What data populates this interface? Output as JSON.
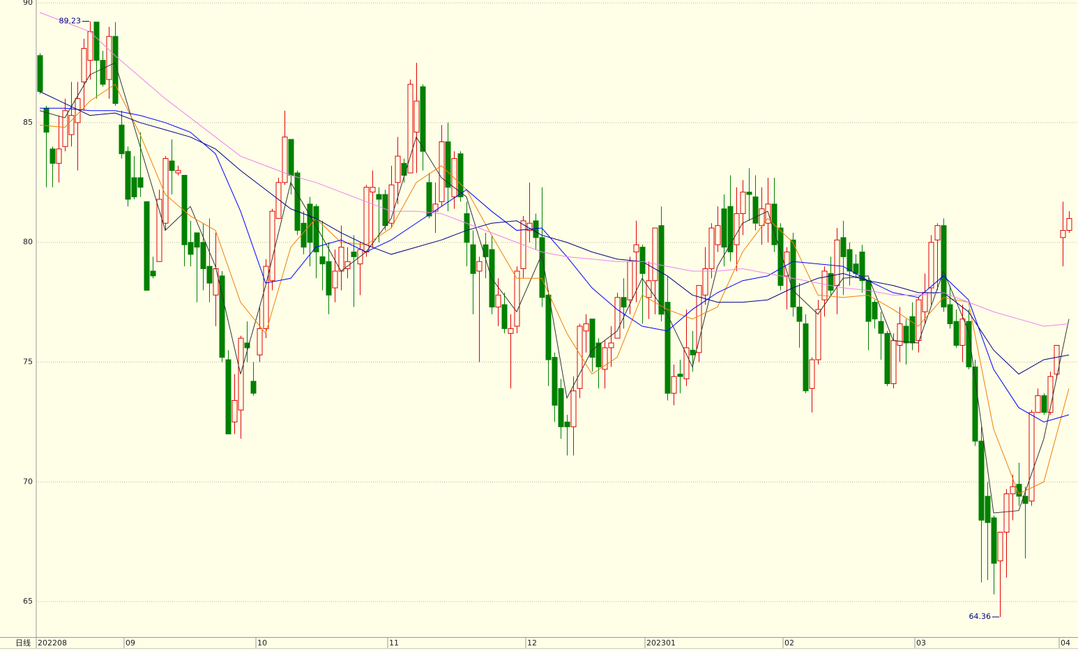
{
  "chart_data": {
    "type": "candlestick",
    "period_label": "日线",
    "categories": [
      "202208",
      null,
      null,
      null,
      null,
      null,
      null,
      null,
      null,
      null,
      null,
      null,
      null,
      null,
      "09",
      null,
      null,
      null,
      null,
      null,
      null,
      null,
      null,
      null,
      null,
      null,
      null,
      null,
      null,
      null,
      null,
      null,
      null,
      null,
      null,
      "10",
      null,
      null,
      null,
      null,
      null,
      null,
      null,
      null,
      null,
      null,
      null,
      null,
      null,
      null,
      null,
      null,
      null,
      null,
      null,
      null,
      "11",
      null,
      null,
      null,
      null,
      null,
      null,
      null,
      null,
      null,
      null,
      null,
      null,
      null,
      null,
      null,
      null,
      null,
      null,
      null,
      null,
      null,
      "12",
      null,
      null,
      null,
      null,
      null,
      null,
      null,
      null,
      null,
      null,
      null,
      null,
      null,
      null,
      null,
      null,
      null,
      null,
      "202301",
      null,
      null,
      null,
      null,
      null,
      null,
      null,
      null,
      null,
      null,
      null,
      null,
      null,
      null,
      null,
      null,
      null,
      null,
      null,
      null,
      null,
      "02",
      null,
      null,
      null,
      null,
      null,
      null,
      null,
      null,
      null,
      null,
      null,
      null,
      null,
      null,
      null,
      null,
      null,
      null,
      null,
      null,
      "03",
      null,
      null,
      null,
      null,
      null,
      null,
      null,
      null,
      null,
      null,
      null,
      null,
      null,
      null,
      null,
      null,
      null,
      null,
      null,
      null,
      null,
      null,
      "04",
      null
    ],
    "open": [
      87.8,
      85.6,
      83.9,
      83.3,
      84,
      84.5,
      85,
      86.7,
      87.6,
      89.2,
      87.6,
      86.8,
      88.6,
      84.9,
      83.8,
      82.7,
      82.7,
      81.7,
      78.8,
      79.2,
      80.8,
      83.4,
      82.9,
      82.8,
      80,
      80.4,
      80,
      79,
      77.8,
      78.6,
      75.1,
      72.5,
      73,
      75.8,
      74.2,
      75.3,
      76.4,
      78.4,
      81,
      82.5,
      84.3,
      82.9,
      80.8,
      81.6,
      81.5,
      79.4,
      79.2,
      78.1,
      78.8,
      78.9,
      79.6,
      79.1,
      79.6,
      82.1,
      82,
      82,
      80.8,
      82.5,
      83.3,
      82.9,
      84.6,
      86.5,
      82.5,
      81.3,
      81.7,
      84.2,
      81.9,
      83.7,
      81.2,
      79.9,
      78.8,
      79.9,
      79.7,
      77.3,
      77.4,
      76.2,
      76.5,
      78.9,
      80.5,
      80.9,
      80.2,
      77.8,
      75.2,
      73.9,
      72.5,
      72.3,
      73.9,
      76.3,
      76.8,
      75.8,
      74.7,
      75.6,
      76,
      77.7,
      77.6,
      79.6,
      79.8,
      77.7,
      78.4,
      80.7,
      77.5,
      73.7,
      74.5,
      74.3,
      75.5,
      75.4,
      77.8,
      78.9,
      79.9,
      81.4,
      81.5,
      79.9,
      81.2,
      82.1,
      81.9,
      80.7,
      80.8,
      81.6,
      80.6,
      78.6,
      80.1,
      77.3,
      76.6,
      73.9,
      75.1,
      77.6,
      78.7,
      78.2,
      80.2,
      79.7,
      79.1,
      79.6,
      78.4,
      77.5,
      76.7,
      76.2,
      74.1,
      75.7,
      76.5,
      76.9,
      75.9,
      77.1,
      78.1,
      80.1,
      80.7,
      77.4,
      76.7,
      75.7,
      76.7,
      74.8,
      71.7,
      69.4,
      68.5,
      66.7,
      67.9,
      69.5,
      69.9,
      69.4,
      69.2,
      72.9,
      73.6,
      72.9,
      74.5,
      80.2,
      80.5
    ],
    "high": [
      87.9,
      85.7,
      84,
      85.3,
      86,
      86.7,
      86.7,
      88.5,
      89.23,
      89.2,
      88,
      89,
      89.2,
      85.5,
      84,
      83.6,
      84.6,
      81.7,
      79.4,
      82.2,
      83.6,
      84.3,
      83.2,
      82.8,
      80.9,
      80.4,
      80.8,
      81,
      80.4,
      78.8,
      75.5,
      74.5,
      76.1,
      76.7,
      75,
      77.3,
      79.3,
      81.4,
      82.7,
      85.5,
      84.3,
      83,
      81.3,
      81.9,
      81.6,
      80.9,
      80,
      79.7,
      80.7,
      79.8,
      80.3,
      80,
      82.4,
      83,
      82.3,
      82.2,
      83.2,
      84.4,
      83.5,
      86.8,
      87.5,
      86.6,
      82.9,
      82.5,
      84.9,
      85,
      83.8,
      83.8,
      81.7,
      80.5,
      79.4,
      80.4,
      80.3,
      78.5,
      77.9,
      77,
      79,
      81.1,
      82.5,
      81.2,
      82.3,
      78,
      75.4,
      74.3,
      72.8,
      74.4,
      76.6,
      77,
      76.8,
      76,
      75.9,
      76.5,
      77.9,
      78.5,
      79.4,
      80.9,
      79.9,
      79.2,
      80.6,
      81.5,
      78.6,
      74.9,
      75.1,
      77.2,
      76.3,
      78.2,
      79.8,
      80.8,
      81.5,
      82,
      82.8,
      82.3,
      82.6,
      83.1,
      82.8,
      82.3,
      82.7,
      82.7,
      80.8,
      79.8,
      80.4,
      78.3,
      77,
      75.2,
      77.6,
      79,
      79.4,
      80.6,
      80.9,
      80,
      79.5,
      79.9,
      78.5,
      77.6,
      77.1,
      76.3,
      76.2,
      77.3,
      76.8,
      77.5,
      77.7,
      78.7,
      80.3,
      80.8,
      81,
      78.2,
      77.2,
      77.4,
      77.2,
      75.1,
      72.3,
      70,
      68.6,
      67.9,
      69.7,
      70.3,
      70.8,
      69.8,
      73,
      73.9,
      73.7,
      74.6,
      75.7,
      81.7,
      81.3
    ],
    "low": [
      86.2,
      82.3,
      82.3,
      82.5,
      83.8,
      84,
      83,
      85.5,
      86.8,
      86,
      86.5,
      86,
      85.7,
      83.5,
      81.5,
      81.8,
      81.9,
      78,
      78.5,
      79.2,
      80.5,
      82,
      82.8,
      79,
      79,
      77.5,
      78,
      77.5,
      76.5,
      75,
      72,
      72,
      71.8,
      75,
      73.6,
      75,
      76,
      78,
      81,
      82.4,
      82,
      80.3,
      79.5,
      79,
      78.5,
      78,
      77,
      77.5,
      78,
      78.5,
      77.3,
      77.8,
      79.4,
      79.8,
      80,
      80.5,
      80.6,
      81.6,
      82.5,
      82.9,
      82.9,
      83,
      81,
      80.4,
      81.5,
      81.3,
      81.4,
      81.7,
      79,
      77,
      75,
      78.5,
      77,
      76.5,
      76.2,
      73.9,
      76.2,
      78.5,
      80,
      79.7,
      77.3,
      74,
      72.5,
      71.8,
      71.1,
      71.1,
      73.5,
      75.4,
      74.6,
      73.9,
      73.9,
      74.8,
      76,
      76.4,
      77,
      77.5,
      76.6,
      76.8,
      77,
      76.7,
      73.4,
      73.2,
      73.7,
      74,
      74.6,
      75,
      77.4,
      78.5,
      79.6,
      79,
      79.2,
      78.8,
      80.3,
      80.9,
      80.5,
      79.9,
      80,
      79.6,
      78,
      77.2,
      76.9,
      75.6,
      73.7,
      72.9,
      74.9,
      76.9,
      77.8,
      77,
      77.8,
      78.2,
      78.5,
      77.9,
      75.5,
      76.4,
      75.1,
      74,
      73.9,
      75,
      74.9,
      75.5,
      75.4,
      76.6,
      77.4,
      78,
      77.1,
      76.4,
      75.6,
      75,
      74.7,
      71.5,
      65.8,
      65.9,
      65.3,
      64.36,
      66,
      68.4,
      69,
      66.8,
      69,
      73,
      72.8,
      72.8,
      74.3,
      79,
      80.4
    ],
    "close": [
      86.3,
      84.6,
      83.3,
      83.9,
      85.5,
      85.3,
      86,
      88.1,
      88.8,
      87.6,
      86.6,
      88.6,
      85.8,
      83.7,
      81.8,
      81.9,
      82.3,
      78,
      78.6,
      81.8,
      83.5,
      83,
      83,
      79.9,
      79.5,
      79.8,
      78.9,
      78.3,
      78.9,
      75.2,
      72,
      73.4,
      76,
      75.6,
      73.7,
      76.4,
      79,
      81.3,
      82.5,
      84.4,
      82.8,
      80.5,
      79.8,
      80,
      79.6,
      79.1,
      77.8,
      78.8,
      79.8,
      79.2,
      79.4,
      79.7,
      82.3,
      82.3,
      81.8,
      80.7,
      82.4,
      83.6,
      82.8,
      86.6,
      85.9,
      83.8,
      81.1,
      81.6,
      84.2,
      82.3,
      83.5,
      81.9,
      80,
      78.7,
      79.2,
      79.4,
      77.3,
      77.8,
      76.4,
      76.4,
      78.8,
      80.9,
      80.8,
      80.2,
      77.7,
      75.1,
      73.2,
      72.3,
      72.3,
      73.8,
      76.5,
      76.6,
      75.2,
      74.8,
      75.6,
      75.8,
      77.7,
      77.3,
      79.2,
      79.9,
      78.7,
      78.4,
      80.6,
      77,
      73.7,
      74.4,
      74.4,
      75.6,
      75.3,
      78.2,
      78.9,
      80.6,
      80.7,
      79.8,
      79.6,
      81.2,
      82.1,
      82,
      80.8,
      81.4,
      81.6,
      79.9,
      78.2,
      79.6,
      77.3,
      76.7,
      73.8,
      75.1,
      77.2,
      78.8,
      78,
      80.1,
      79.4,
      78.8,
      78.7,
      78.4,
      76.7,
      76.8,
      76.2,
      74.1,
      75.9,
      76.6,
      75.8,
      75.8,
      77.6,
      77.9,
      80,
      80.7,
      77.3,
      76.6,
      75.7,
      76.8,
      74.8,
      71.7,
      68.4,
      68.3,
      66.6,
      67.9,
      69.5,
      69.8,
      69.4,
      69.1,
      72.9,
      73.6,
      72.9,
      74.4,
      75.7,
      80.5,
      81
    ],
    "up_color": "#e00000",
    "down_color": "#008000",
    "ylim": [
      63.52,
      90.12
    ],
    "yticks": [
      65,
      70,
      75,
      80,
      85,
      90
    ],
    "grid": true,
    "ma_x": [
      0,
      4,
      8,
      12,
      16,
      20,
      24,
      28,
      32,
      36,
      40,
      44,
      48,
      52,
      56,
      60,
      64,
      68,
      72,
      76,
      80,
      84,
      88,
      92,
      96,
      100,
      104,
      108,
      112,
      116,
      120,
      124,
      128,
      132,
      136,
      140,
      144,
      148,
      152,
      156,
      160,
      164
    ],
    "lines": [
      {
        "color": "#333333",
        "values": [
          85.5,
          85.2,
          87,
          87.5,
          84,
          80.5,
          81.5,
          79,
          74.5,
          78.2,
          82.5,
          80.7,
          78.8,
          79.6,
          81,
          84.4,
          82.7,
          81.9,
          78.5,
          77.1,
          79.5,
          73.5,
          75.5,
          76.3,
          78.5,
          77,
          74.8,
          79,
          80.8,
          81.3,
          78,
          77,
          78.5,
          78.6,
          75.9,
          75.8,
          78.8,
          76.3,
          68.7,
          68.8,
          71.8,
          76.8
        ]
      },
      {
        "color": "#f08000",
        "values": [
          84.9,
          84.8,
          85.9,
          86.6,
          84.5,
          82,
          81.1,
          80.5,
          77.5,
          76.2,
          79.8,
          81,
          80,
          79.9,
          80.6,
          82.5,
          83.2,
          82.2,
          80.3,
          78.5,
          78.5,
          76.2,
          74.5,
          75.2,
          77.8,
          77.2,
          76.8,
          77.3,
          79.6,
          81,
          80,
          77.8,
          77.7,
          77.8,
          77.2,
          76.5,
          77.7,
          77.5,
          72.2,
          69.5,
          70,
          73.9
        ]
      },
      {
        "color": "#0000ff",
        "values": [
          85.6,
          85.6,
          85.5,
          85.5,
          85.3,
          85,
          84.6,
          83.7,
          81.3,
          78.3,
          78.5,
          79.8,
          80.1,
          79.6,
          80.1,
          80.8,
          81.5,
          82.2,
          81.3,
          80.5,
          80.6,
          79.4,
          78.1,
          77.2,
          76.5,
          76.3,
          77.2,
          77.9,
          78.4,
          78.6,
          79.2,
          79.1,
          79,
          78.4,
          77.9,
          77.7,
          78.6,
          77.6,
          74.7,
          73.1,
          72.5,
          72.8
        ]
      },
      {
        "color": "#000080",
        "values": [
          86.3,
          85.8,
          85.3,
          85.4,
          85,
          84.7,
          84.4,
          83.9,
          83,
          82.2,
          81.4,
          81,
          80.4,
          79.9,
          79.5,
          79.8,
          80.1,
          80.5,
          80.8,
          80.9,
          80.3,
          80,
          79.6,
          79.3,
          79.2,
          78.6,
          77.8,
          77.5,
          77.5,
          77.6,
          78.1,
          78.5,
          78.7,
          78.4,
          78.2,
          77.9,
          77.9,
          77.1,
          75.5,
          74.5,
          75.1,
          75.3
        ]
      },
      {
        "color": "#ee82ee",
        "values": [
          89.6,
          89.2,
          88.8,
          87.8,
          86.9,
          86,
          85.2,
          84.4,
          83.6,
          83.2,
          82.8,
          82.5,
          82.1,
          81.7,
          81.3,
          81.3,
          81.2,
          80.8,
          80.4,
          80,
          79.6,
          79.4,
          79.3,
          79.2,
          79.2,
          79,
          78.8,
          78.8,
          78.9,
          78.7,
          78.5,
          78.3,
          78.1,
          78,
          77.8,
          77.8,
          77.9,
          77.5,
          77.1,
          76.8,
          76.5,
          76.6
        ]
      }
    ],
    "annotations": [
      {
        "x": 8,
        "value": 89.23
      },
      {
        "x": 153,
        "value": 64.36
      }
    ]
  }
}
